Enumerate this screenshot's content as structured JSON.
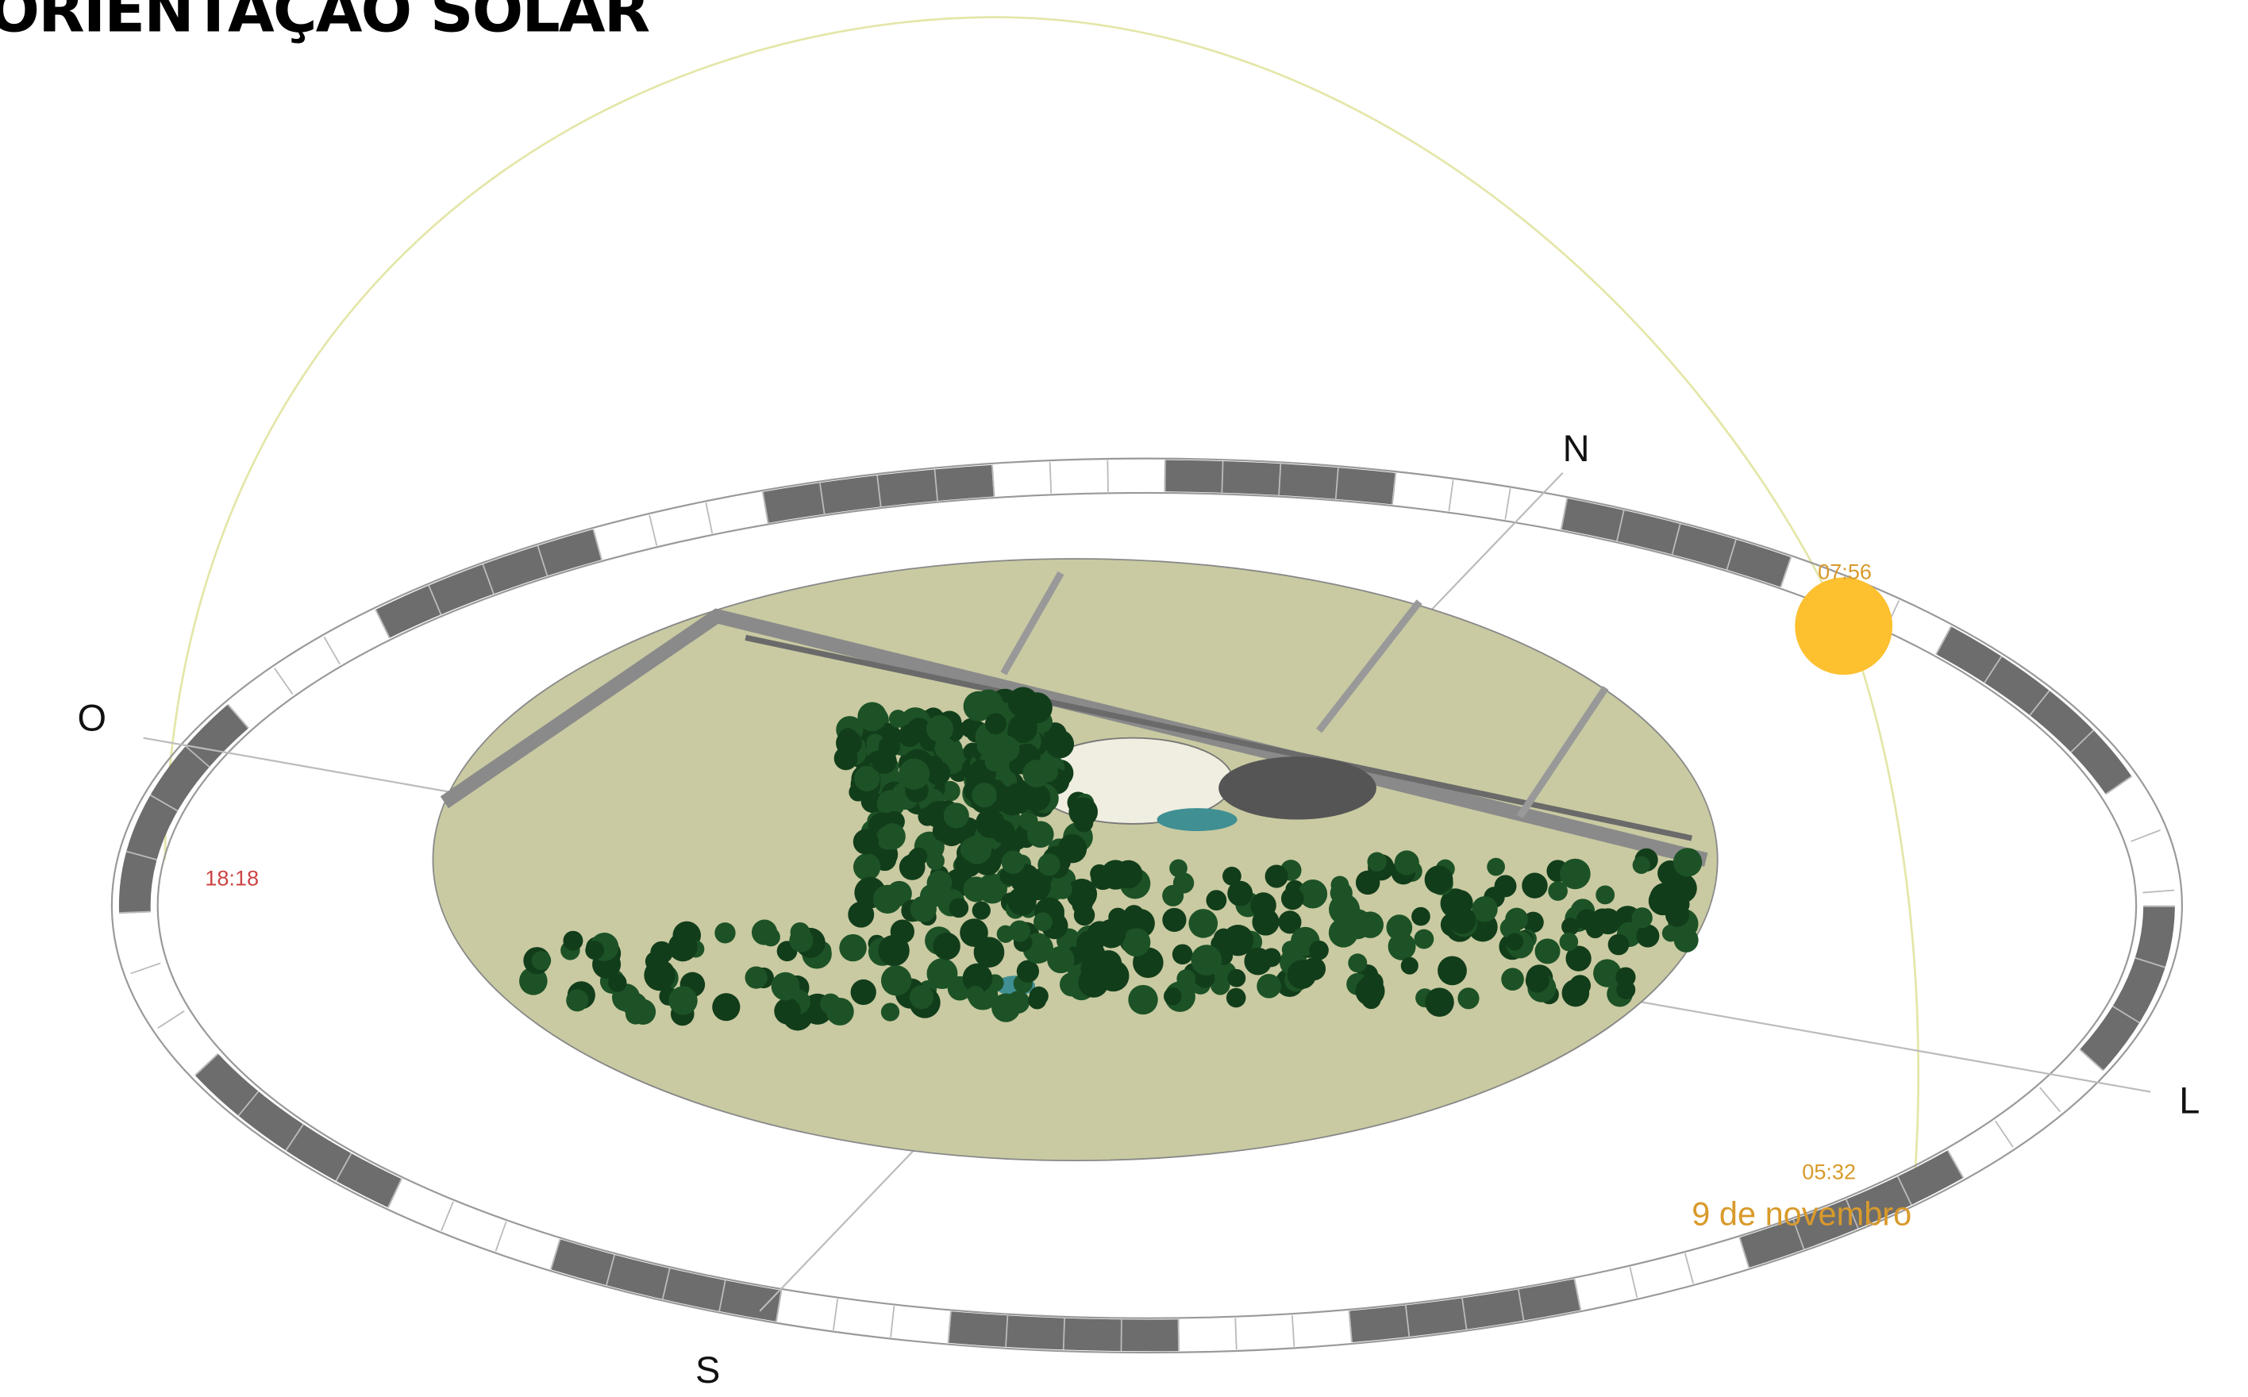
{
  "title": "ORIENTAÇÃO SOLAR",
  "compass": {
    "north": "N",
    "west": "O",
    "east": "L",
    "south": "S"
  },
  "sun_path": {
    "sunrise_time": "05:32",
    "current_time": "07:56",
    "sunset_time": "18:18",
    "date": "9 de novembro"
  }
}
